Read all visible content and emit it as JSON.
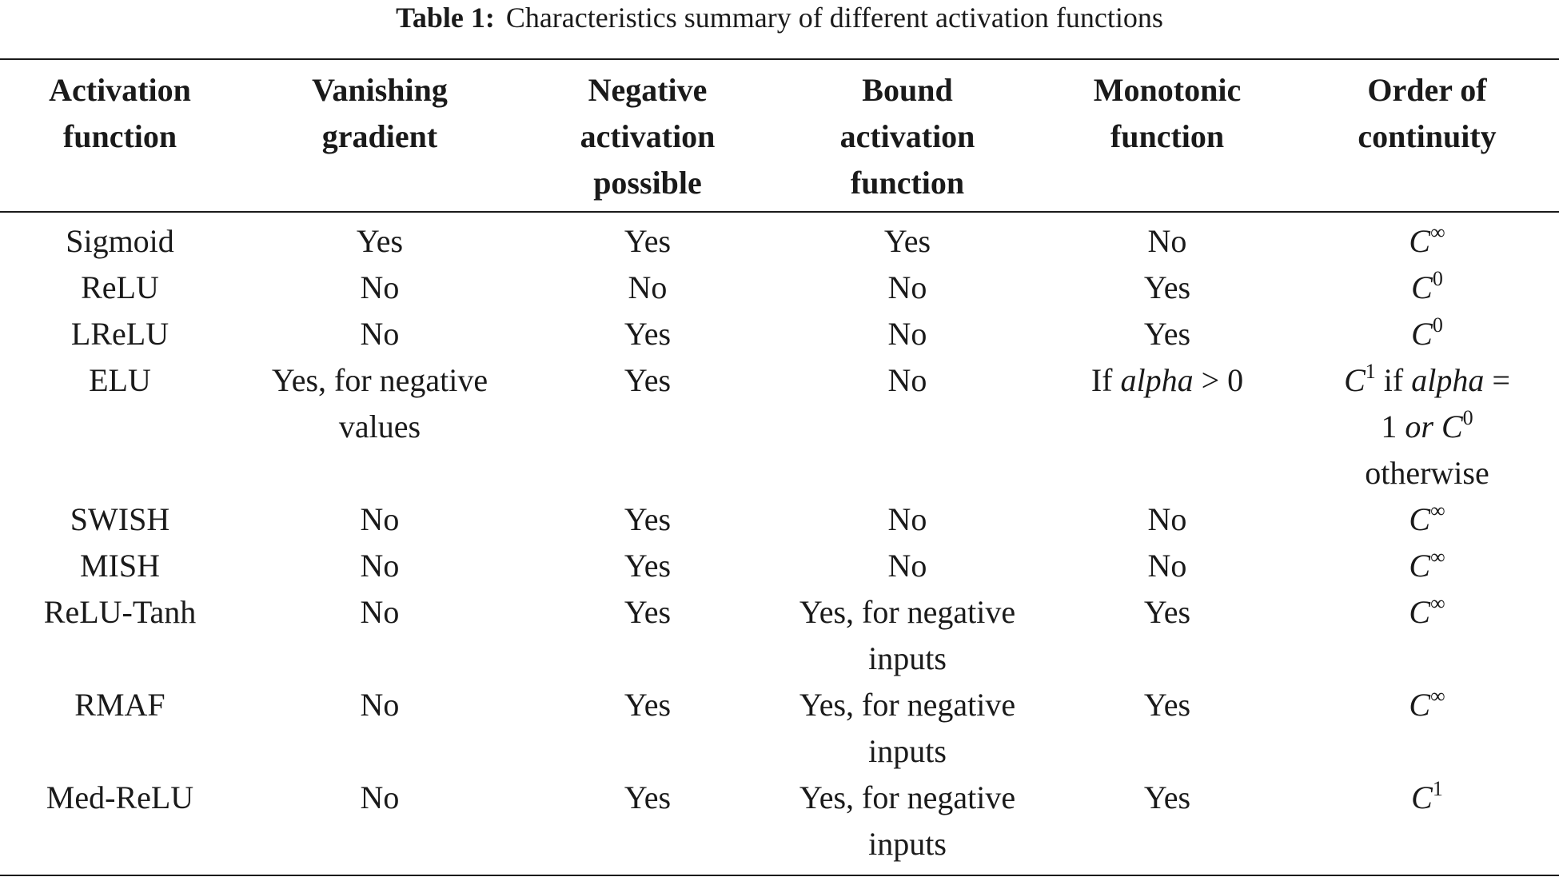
{
  "caption": {
    "label": "Table 1:",
    "text": "Characteristics summary of different activation functions"
  },
  "headers": [
    [
      "Activation",
      "function"
    ],
    [
      "Vanishing",
      "gradient"
    ],
    [
      "Negative",
      "activation",
      "possible"
    ],
    [
      "Bound",
      "activation",
      "function"
    ],
    [
      "Monotonic",
      "function"
    ],
    [
      "Order of",
      "continuity"
    ]
  ],
  "rows": [
    {
      "name": "Sigmoid",
      "vanishing": [
        "Yes"
      ],
      "negative": "Yes",
      "bound": [
        "Yes"
      ],
      "monotonic": {
        "text": "No"
      },
      "continuity": {
        "base": "C",
        "sup": "∞"
      }
    },
    {
      "name": "ReLU",
      "vanishing": [
        "No"
      ],
      "negative": "No",
      "bound": [
        "No"
      ],
      "monotonic": {
        "text": "Yes"
      },
      "continuity": {
        "base": "C",
        "sup": "0"
      }
    },
    {
      "name": "LReLU",
      "vanishing": [
        "No"
      ],
      "negative": "Yes",
      "bound": [
        "No"
      ],
      "monotonic": {
        "text": "Yes"
      },
      "continuity": {
        "base": "C",
        "sup": "0"
      }
    },
    {
      "name": "ELU",
      "vanishing": [
        "Yes, for negative",
        "values"
      ],
      "negative": "Yes",
      "bound": [
        "No"
      ],
      "monotonic": {
        "prefix": "If ",
        "math": "alpha",
        "suffix": " > 0"
      },
      "continuity": {
        "complex": true,
        "base1": "C",
        "sup1": "1",
        "mid": " if ",
        "math": "alpha",
        "eq": " =",
        "line2_num": "1 ",
        "line2_math": "or",
        "base2": "C",
        "sup2": "0",
        "line3": "otherwise"
      }
    },
    {
      "name": "SWISH",
      "vanishing": [
        "No"
      ],
      "negative": "Yes",
      "bound": [
        "No"
      ],
      "monotonic": {
        "text": "No"
      },
      "continuity": {
        "base": "C",
        "sup": "∞"
      }
    },
    {
      "name": "MISH",
      "vanishing": [
        "No"
      ],
      "negative": "Yes",
      "bound": [
        "No"
      ],
      "monotonic": {
        "text": "No"
      },
      "continuity": {
        "base": "C",
        "sup": "∞"
      }
    },
    {
      "name": "ReLU-Tanh",
      "vanishing": [
        "No"
      ],
      "negative": "Yes",
      "bound": [
        "Yes, for negative",
        "inputs"
      ],
      "monotonic": {
        "text": "Yes"
      },
      "continuity": {
        "base": "C",
        "sup": "∞"
      }
    },
    {
      "name": "RMAF",
      "vanishing": [
        "No"
      ],
      "negative": "Yes",
      "bound": [
        "Yes, for negative",
        "inputs"
      ],
      "monotonic": {
        "text": "Yes"
      },
      "continuity": {
        "base": "C",
        "sup": "∞"
      }
    },
    {
      "name": "Med-ReLU",
      "vanishing": [
        "No"
      ],
      "negative": "Yes",
      "bound": [
        "Yes, for negative",
        "inputs"
      ],
      "monotonic": {
        "text": "Yes"
      },
      "continuity": {
        "base": "C",
        "sup": "1"
      }
    }
  ]
}
